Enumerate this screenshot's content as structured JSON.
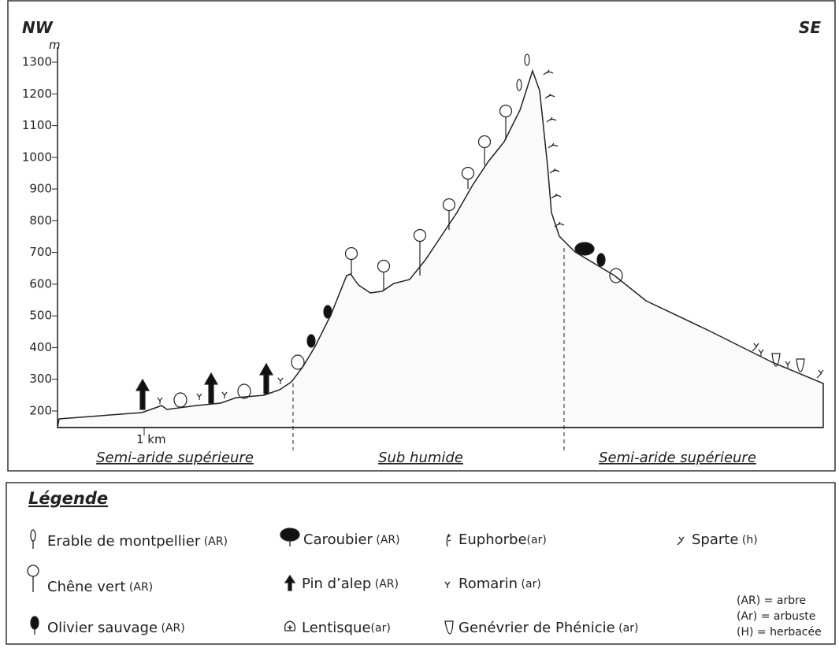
{
  "header": {
    "left": "NW",
    "right": "SE"
  },
  "axis": {
    "unit": "m",
    "ticks": [
      "1300",
      "1200",
      "1100",
      "1000",
      "900",
      "800",
      "700",
      "600",
      "500",
      "400",
      "300",
      "200"
    ],
    "scale_label": "1 km"
  },
  "zones": [
    "Semi-aride supérieure",
    "Sub humide",
    "Semi-aride supérieure"
  ],
  "legend": {
    "title": "Légende",
    "items": [
      {
        "label": "Erable de montpellier",
        "tag": " (AR)"
      },
      {
        "label": "Chêne vert",
        "tag": " (AR)"
      },
      {
        "label": "Olivier sauvage",
        "tag": " (AR)"
      },
      {
        "label": "Caroubier",
        "tag": " (AR)"
      },
      {
        "label": "Pin d’alep",
        "tag": " (AR)"
      },
      {
        "label": "Lentisque",
        "tag": "(ar)"
      },
      {
        "label": "Euphorbe",
        "tag": "(ar)"
      },
      {
        "label": "Romarin",
        "tag": " (ar)"
      },
      {
        "label": "Genévrier de Phénicie",
        "tag": " (ar)"
      },
      {
        "label": "Sparte",
        "tag": " (h)"
      }
    ],
    "notes": [
      "(AR) = arbre",
      "(Ar) = arbuste",
      "(H) = herbacée"
    ]
  }
}
